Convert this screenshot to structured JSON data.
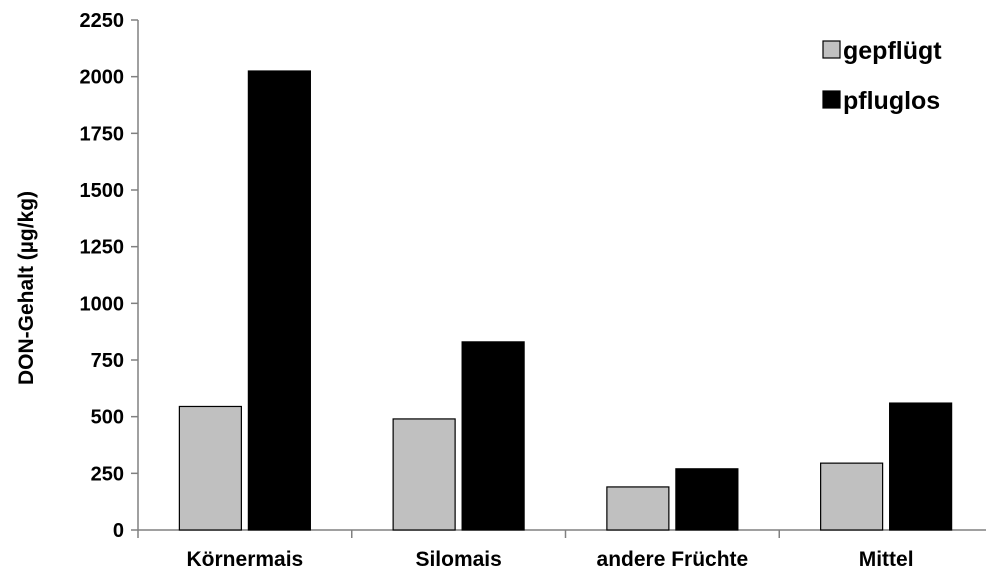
{
  "chart_data": {
    "type": "bar",
    "title": "",
    "xlabel": "",
    "ylabel": "DON-Gehalt (µg/kg)",
    "ylim": [
      0,
      2250
    ],
    "yticks": [
      0,
      250,
      500,
      750,
      1000,
      1250,
      1500,
      1750,
      2000,
      2250
    ],
    "grid": false,
    "legend_position": "top-right",
    "categories": [
      "Körnermais",
      "Silomais",
      "andere Früchte",
      "Mittel"
    ],
    "series": [
      {
        "name": "gepflügt",
        "color": "#c0c0c0",
        "values": [
          545,
          490,
          190,
          295
        ]
      },
      {
        "name": "pfluglos",
        "color": "#000000",
        "values": [
          2025,
          830,
          270,
          560
        ]
      }
    ]
  }
}
